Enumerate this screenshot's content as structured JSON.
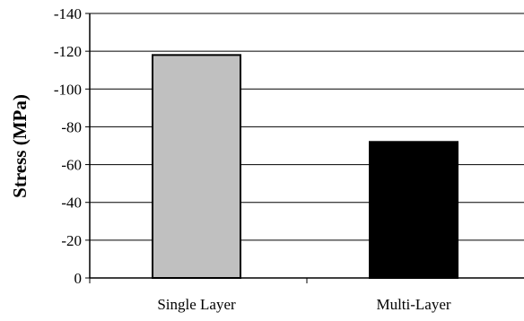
{
  "chart_data": {
    "type": "bar",
    "title": "",
    "xlabel": "",
    "ylabel": "Stress (MPa)",
    "categories": [
      "Single Layer",
      "Multi-Layer"
    ],
    "values": [
      -118,
      -72
    ],
    "ylim": [
      0,
      -140
    ],
    "yticks": [
      0,
      -20,
      -40,
      -60,
      -80,
      -100,
      -120,
      -140
    ],
    "ytick_labels": [
      "0",
      "-20",
      "-40",
      "-60",
      "-80",
      "-100",
      "-120",
      "-140"
    ],
    "grid": true,
    "legend": "none",
    "bar_colors": [
      "#c0c0c0",
      "#000000"
    ]
  }
}
